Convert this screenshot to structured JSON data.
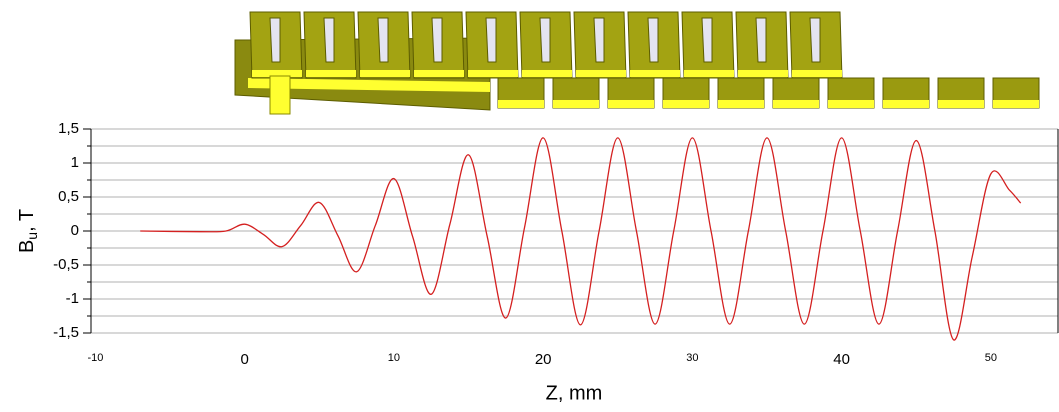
{
  "chart_data": {
    "type": "line",
    "x_label": "Z, mm",
    "y_label_symbol": "B",
    "y_label_subscript": "u",
    "y_label_unit": ", T",
    "xlim": [
      -10.3,
      54.5
    ],
    "xticks": [
      -10,
      0,
      10,
      20,
      30,
      40,
      50
    ],
    "ylim": [
      -1.5,
      1.5
    ],
    "yticks": [
      {
        "value": 1.5,
        "label": "1,5"
      },
      1,
      {
        "value": 0.5,
        "label": "0,5"
      },
      0,
      {
        "value": -0.5,
        "label": "-0,5"
      },
      -1,
      {
        "value": -1.5,
        "label": "-1,5"
      }
    ],
    "y_minor_ticks": [
      1.25,
      0.75,
      0.25,
      -0.25,
      -0.75,
      -1.25
    ],
    "grid": true,
    "series": [
      {
        "color": "#d42020",
        "x": [
          -7,
          -3,
          -1.25,
          0,
          1.25,
          2.5,
          3.75,
          5,
          6.25,
          7.5,
          8.75,
          10,
          11.25,
          12.5,
          13.75,
          15,
          16.25,
          17.5,
          18.75,
          20,
          21.25,
          22.5,
          23.75,
          25,
          26.25,
          27.5,
          28.75,
          30,
          31.25,
          32.5,
          33.75,
          35,
          36.25,
          37.5,
          38.75,
          40,
          41.25,
          42.5,
          43.75,
          45,
          46.25,
          47.5,
          48.75,
          50,
          51.25,
          52
        ],
        "values": [
          0,
          -0.01,
          0,
          0.1,
          -0.05,
          -0.23,
          0.08,
          0.42,
          -0.07,
          -0.6,
          0.08,
          0.77,
          -0.08,
          -0.93,
          0.1,
          1.12,
          -0.08,
          -1.28,
          0.05,
          1.37,
          0,
          -1.38,
          0,
          1.37,
          0,
          -1.37,
          0,
          1.37,
          0,
          -1.37,
          0,
          1.37,
          0,
          -1.37,
          0,
          1.37,
          0,
          -1.37,
          0,
          1.33,
          0,
          -1.6,
          -0.38,
          0.84,
          0.6,
          0.41
        ]
      }
    ]
  }
}
